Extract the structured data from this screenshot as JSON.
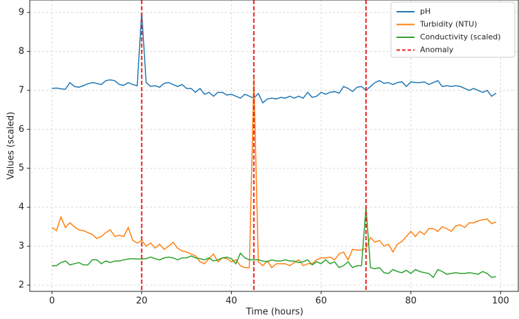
{
  "chart_data": {
    "type": "line",
    "xlabel": "Time (hours)",
    "ylabel": "Values (scaled)",
    "x": [
      0,
      1,
      2,
      3,
      4,
      5,
      6,
      7,
      8,
      9,
      10,
      11,
      12,
      13,
      14,
      15,
      16,
      17,
      18,
      19,
      20,
      21,
      22,
      23,
      24,
      25,
      26,
      27,
      28,
      29,
      30,
      31,
      32,
      33,
      34,
      35,
      36,
      37,
      38,
      39,
      40,
      41,
      42,
      43,
      44,
      45,
      46,
      47,
      48,
      49,
      50,
      51,
      52,
      53,
      54,
      55,
      56,
      57,
      58,
      59,
      60,
      61,
      62,
      63,
      64,
      65,
      66,
      67,
      68,
      69,
      70,
      71,
      72,
      73,
      74,
      75,
      76,
      77,
      78,
      79,
      80,
      81,
      82,
      83,
      84,
      85,
      86,
      87,
      88,
      89,
      90,
      91,
      92,
      93,
      94,
      95,
      96,
      97,
      98,
      99
    ],
    "series": [
      {
        "name": "pH",
        "color": "#1f77b4",
        "values": [
          7.05,
          7.06,
          7.04,
          7.03,
          7.2,
          7.1,
          7.08,
          7.12,
          7.17,
          7.2,
          7.18,
          7.15,
          7.25,
          7.27,
          7.25,
          7.15,
          7.13,
          7.2,
          7.15,
          7.12,
          9.0,
          7.2,
          7.1,
          7.12,
          7.08,
          7.18,
          7.2,
          7.15,
          7.1,
          7.15,
          7.05,
          7.05,
          6.95,
          7.05,
          6.9,
          6.95,
          6.85,
          6.95,
          6.95,
          6.88,
          6.9,
          6.85,
          6.8,
          6.9,
          6.85,
          6.8,
          6.92,
          6.68,
          6.78,
          6.8,
          6.78,
          6.82,
          6.8,
          6.85,
          6.8,
          6.85,
          6.8,
          6.95,
          6.82,
          6.85,
          6.95,
          6.9,
          6.95,
          6.97,
          6.93,
          7.1,
          7.05,
          6.97,
          7.08,
          7.1,
          7.0,
          7.1,
          7.2,
          7.25,
          7.18,
          7.2,
          7.15,
          7.2,
          7.22,
          7.1,
          7.22,
          7.2,
          7.2,
          7.22,
          7.15,
          7.2,
          7.25,
          7.1,
          7.12,
          7.1,
          7.12,
          7.1,
          7.05,
          7.0,
          7.05,
          7.0,
          6.95,
          7.0,
          6.85,
          6.93
        ]
      },
      {
        "name": "Turbidity (NTU)",
        "color": "#ff7f0e",
        "values": [
          3.48,
          3.4,
          3.75,
          3.48,
          3.6,
          3.5,
          3.42,
          3.4,
          3.35,
          3.3,
          3.2,
          3.25,
          3.35,
          3.42,
          3.25,
          3.28,
          3.25,
          3.48,
          3.15,
          3.08,
          3.15,
          3.0,
          3.08,
          2.95,
          3.05,
          2.92,
          3.0,
          3.1,
          2.95,
          2.88,
          2.85,
          2.8,
          2.75,
          2.6,
          2.55,
          2.68,
          2.8,
          2.6,
          2.7,
          2.68,
          2.6,
          2.65,
          2.5,
          2.45,
          2.45,
          7.3,
          2.6,
          2.5,
          2.62,
          2.45,
          2.55,
          2.55,
          2.55,
          2.5,
          2.58,
          2.65,
          2.5,
          2.55,
          2.55,
          2.65,
          2.7,
          2.7,
          2.72,
          2.65,
          2.8,
          2.85,
          2.65,
          2.92,
          2.9,
          2.9,
          2.95,
          3.22,
          3.1,
          3.15,
          3.0,
          3.05,
          2.85,
          3.05,
          3.12,
          3.25,
          3.38,
          3.25,
          3.38,
          3.3,
          3.45,
          3.45,
          3.38,
          3.5,
          3.45,
          3.38,
          3.52,
          3.55,
          3.48,
          3.6,
          3.6,
          3.65,
          3.68,
          3.7,
          3.58,
          3.62
        ]
      },
      {
        "name": "Conductivity (scaled)",
        "color": "#2ca02c",
        "values": [
          2.5,
          2.5,
          2.58,
          2.62,
          2.52,
          2.55,
          2.58,
          2.52,
          2.52,
          2.65,
          2.65,
          2.55,
          2.62,
          2.58,
          2.62,
          2.62,
          2.65,
          2.67,
          2.68,
          2.67,
          2.67,
          2.68,
          2.72,
          2.68,
          2.65,
          2.7,
          2.72,
          2.7,
          2.65,
          2.7,
          2.7,
          2.75,
          2.7,
          2.68,
          2.65,
          2.7,
          2.62,
          2.65,
          2.7,
          2.72,
          2.68,
          2.55,
          2.82,
          2.7,
          2.65,
          2.65,
          2.65,
          2.62,
          2.6,
          2.65,
          2.62,
          2.62,
          2.65,
          2.62,
          2.62,
          2.58,
          2.6,
          2.65,
          2.52,
          2.6,
          2.55,
          2.65,
          2.55,
          2.6,
          2.45,
          2.5,
          2.6,
          2.45,
          2.5,
          2.5,
          4.0,
          2.45,
          2.42,
          2.45,
          2.32,
          2.3,
          2.4,
          2.35,
          2.32,
          2.38,
          2.3,
          2.4,
          2.35,
          2.32,
          2.3,
          2.2,
          2.4,
          2.35,
          2.28,
          2.3,
          2.32,
          2.3,
          2.3,
          2.32,
          2.3,
          2.28,
          2.35,
          2.3,
          2.2,
          2.22
        ]
      }
    ],
    "anomalies": {
      "name": "Anomaly",
      "color": "#e8201e",
      "x": [
        20,
        45,
        70
      ]
    },
    "xlim": [
      -4.95,
      103.95
    ],
    "xticks": [
      0,
      20,
      40,
      60,
      80,
      100
    ],
    "ylim": [
      1.84,
      9.32
    ],
    "yticks": [
      2,
      3,
      4,
      5,
      6,
      7,
      8,
      9
    ],
    "grid": true,
    "legend": "upper right"
  }
}
